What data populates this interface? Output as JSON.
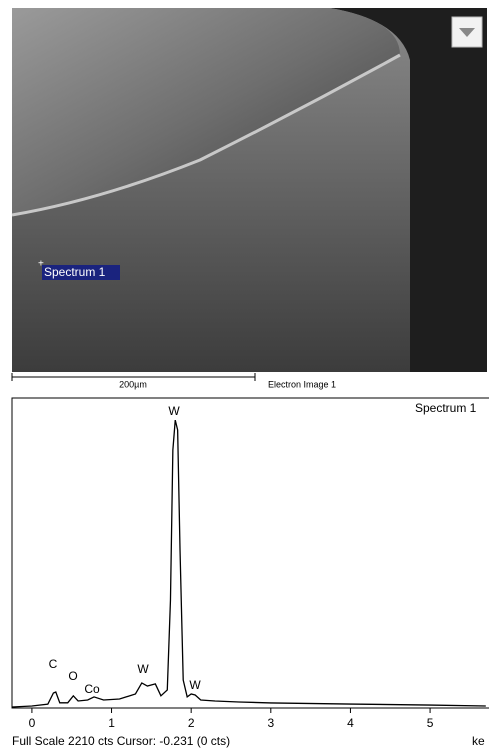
{
  "image": {
    "marker_label": "Spectrum 1",
    "scale_label": "200µm",
    "caption": "Electron Image 1"
  },
  "chart_data": {
    "type": "line",
    "title": "Spectrum 1",
    "x": [
      -0.25,
      0.0,
      0.2,
      0.27,
      0.3,
      0.35,
      0.45,
      0.52,
      0.58,
      0.7,
      0.78,
      0.9,
      1.1,
      1.3,
      1.38,
      1.45,
      1.55,
      1.62,
      1.7,
      1.74,
      1.77,
      1.8,
      1.83,
      1.86,
      1.9,
      1.95,
      2.0,
      2.05,
      2.12,
      2.3,
      2.6,
      3.0,
      4.0,
      5.0,
      5.7
    ],
    "values": [
      0,
      7,
      20,
      100,
      107,
      30,
      30,
      80,
      43,
      50,
      72,
      50,
      57,
      93,
      172,
      150,
      165,
      80,
      122,
      765,
      1838,
      2052,
      1981,
      1123,
      193,
      72,
      93,
      86,
      50,
      43,
      36,
      29,
      21,
      14,
      7
    ],
    "color": "#000000",
    "xlim": [
      -0.25,
      5.74
    ],
    "ylim": [
      0,
      2210
    ],
    "xticks": [
      0,
      1,
      2,
      3,
      4,
      5
    ],
    "x_label": "ke",
    "annotations": [
      "C",
      "O",
      "Co",
      "W",
      "W",
      "W"
    ],
    "footer": "Full Scale 2210 cts Cursor: -0.231  (0 cts)"
  }
}
